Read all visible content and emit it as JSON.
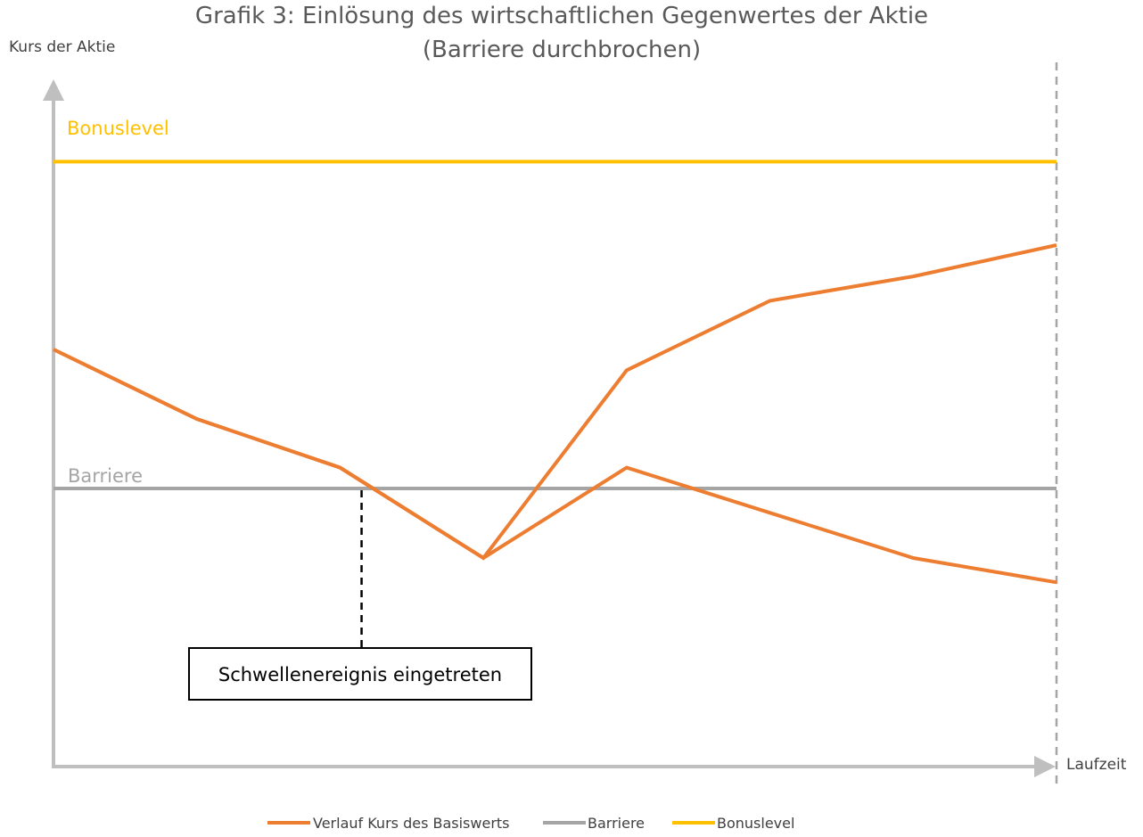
{
  "chart_data": {
    "type": "line",
    "title_line1": "Grafik 3: Einlösung des wirtschaftlichen Gegenwertes der Aktie",
    "title_line2": "(Barriere durchbrochen)",
    "ylabel": "Kurs der Aktie",
    "xlabel": "Laufzeit",
    "x": [
      0,
      1,
      2,
      3,
      4,
      5,
      6,
      7
    ],
    "ylim": [
      0,
      100
    ],
    "xlim": [
      0,
      7
    ],
    "levels": {
      "bonus": {
        "label": "Bonuslevel",
        "value": 87
      },
      "barrier": {
        "label": "Barriere",
        "value": 40
      }
    },
    "series": [
      {
        "name": "Verlauf Kurs des Basiswerts",
        "path": "up",
        "values": [
          60,
          50,
          43,
          30,
          57,
          67,
          70.5,
          75
        ]
      },
      {
        "name": "Verlauf Kurs des Basiswerts",
        "path": "down",
        "values": [
          60,
          50,
          43,
          30,
          43,
          36.5,
          30,
          26.5
        ]
      }
    ],
    "event": {
      "label": "Schwellenereignis eingetreten",
      "x": 2.15
    },
    "legend": [
      {
        "label": "Verlauf Kurs des Basiswerts",
        "color": "#ED7D31"
      },
      {
        "label": "Barriere",
        "color": "#A5A5A5"
      },
      {
        "label": "Bonuslevel",
        "color": "#FFC000"
      }
    ],
    "colors": {
      "series": "#ED7D31",
      "barrier": "#A5A5A5",
      "bonus": "#FFC000",
      "axis": "#BFBFBF",
      "maturity_line": "#A5A5A5"
    },
    "grid": false,
    "legend_position": "bottom"
  }
}
